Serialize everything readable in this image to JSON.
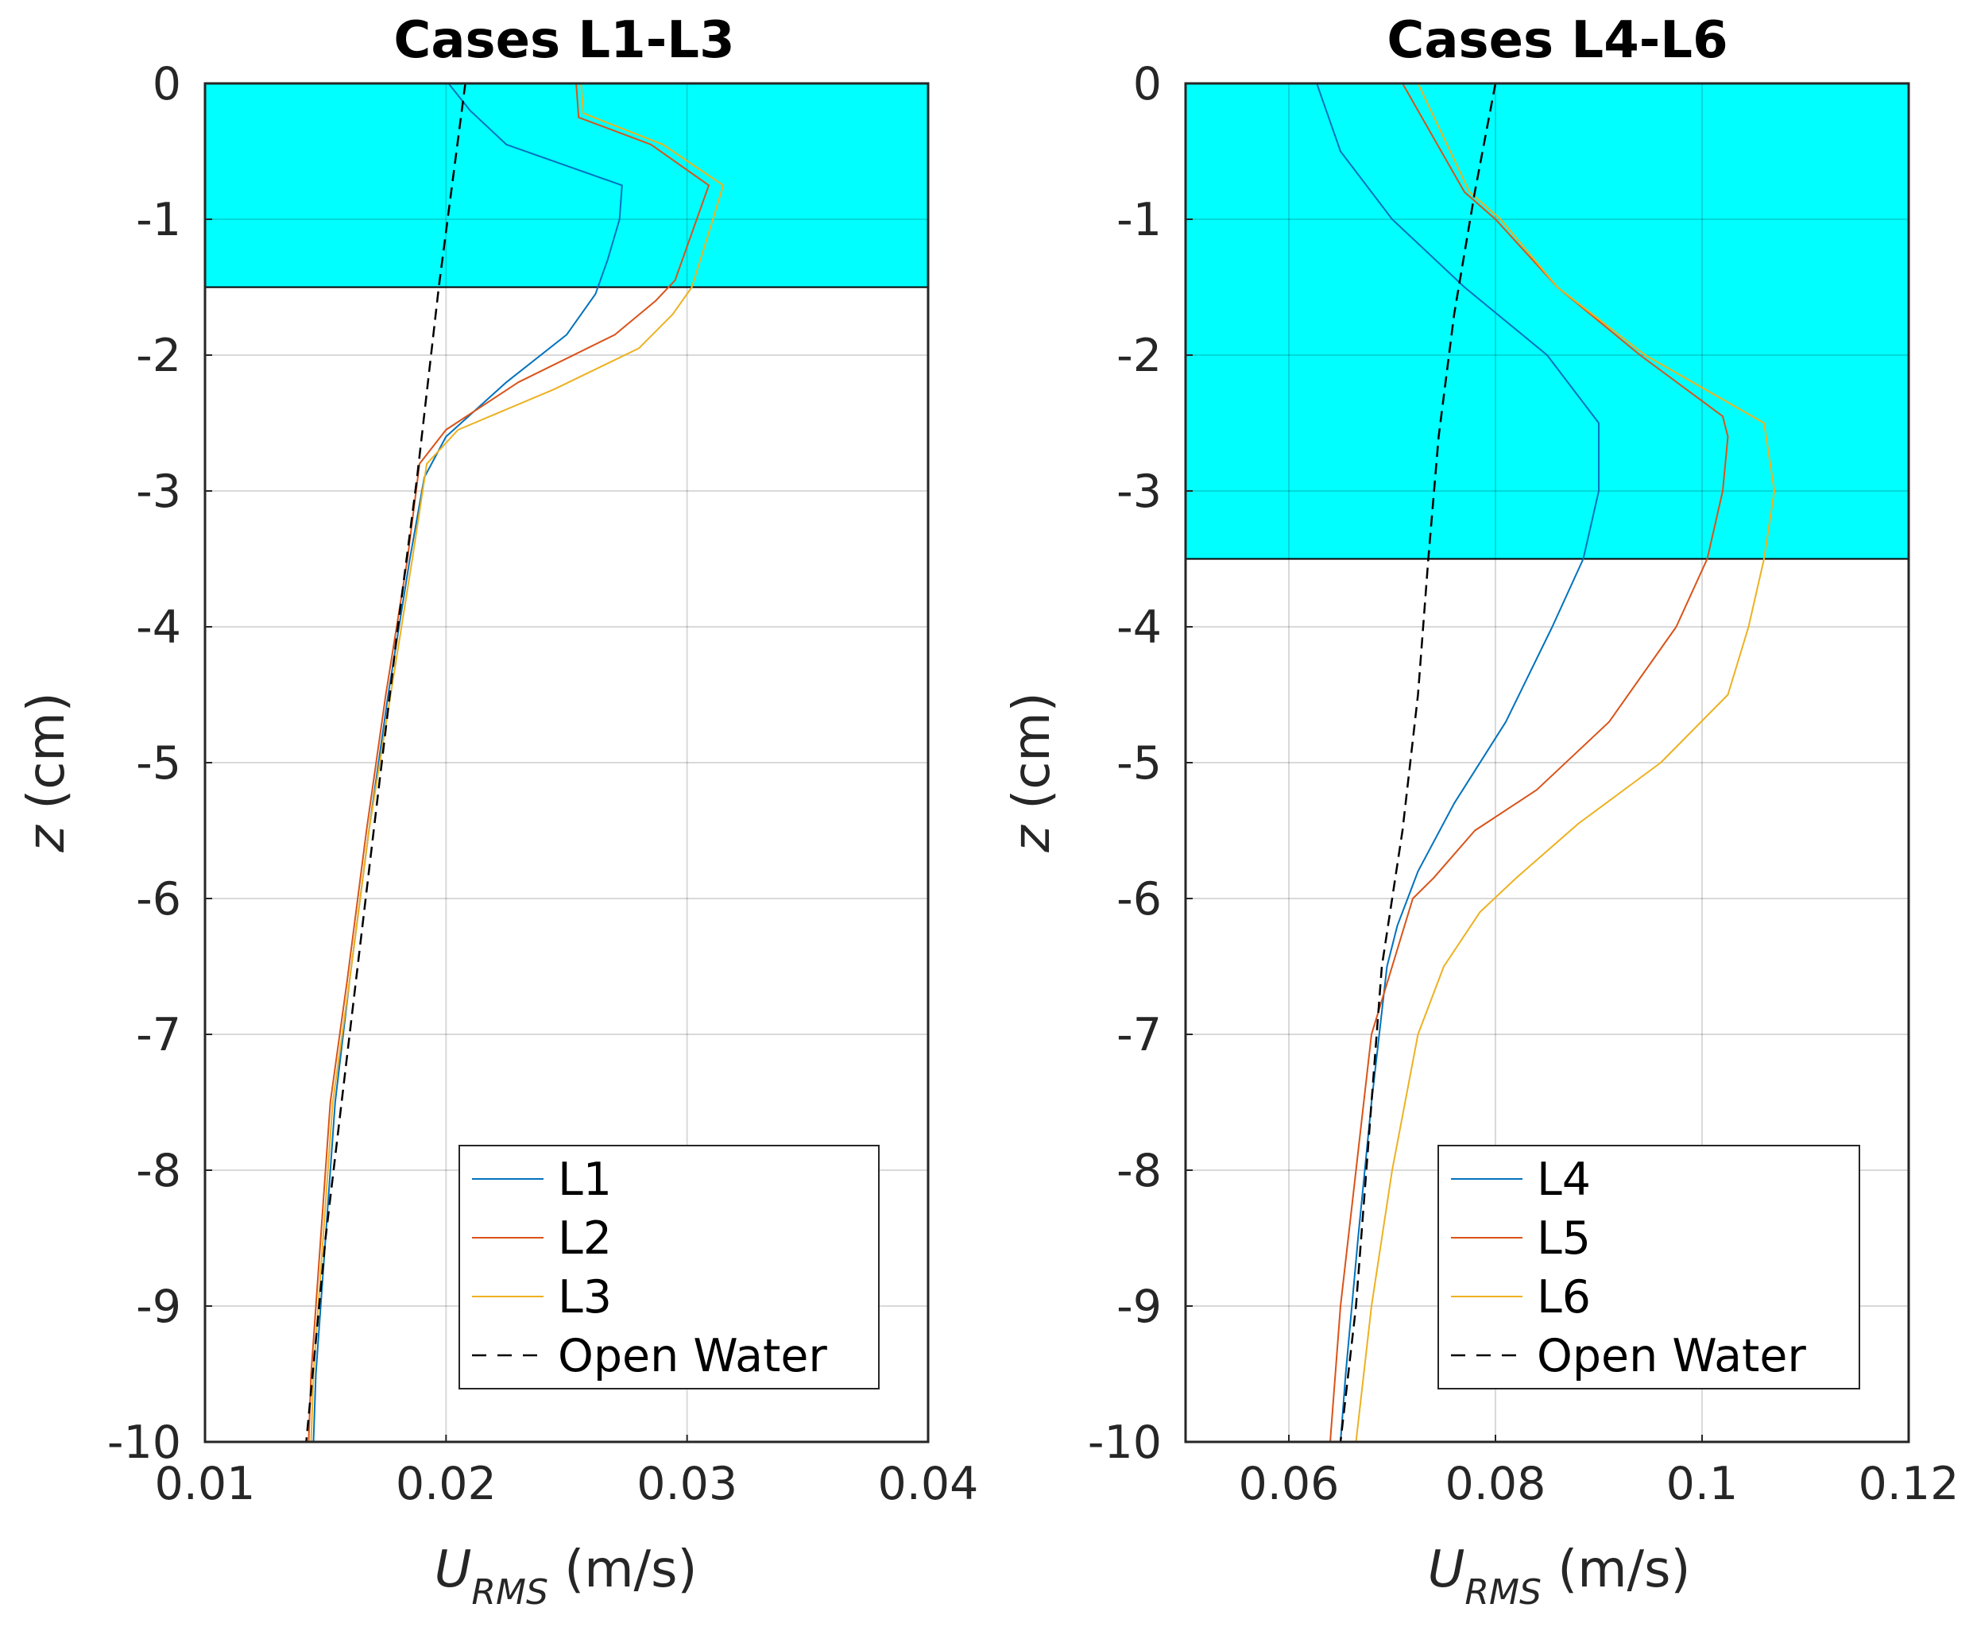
{
  "chart_data": [
    {
      "type": "line",
      "title": "Cases L1-L3",
      "xlabel_main": "U",
      "xlabel_sub": "RMS",
      "xlabel_unit": " (m/s)",
      "ylabel_main": "z",
      "ylabel_unit": " (cm)",
      "xlim": [
        0.01,
        0.04
      ],
      "ylim": [
        -10,
        0
      ],
      "xticks": [
        0.01,
        0.02,
        0.03,
        0.04
      ],
      "xtick_labels": [
        "0.01",
        "0.02",
        "0.03",
        "0.04"
      ],
      "yticks": [
        0,
        -1,
        -2,
        -3,
        -4,
        -5,
        -6,
        -7,
        -8,
        -9,
        -10
      ],
      "ytick_labels": [
        "0",
        "-1",
        "-2",
        "-3",
        "-4",
        "-5",
        "-6",
        "-7",
        "-8",
        "-9",
        "-10"
      ],
      "grid": true,
      "shaded_region": {
        "z_top": 0,
        "z_bottom": -1.5,
        "color": "#00ffff"
      },
      "legend_position": "bottom-right",
      "series": [
        {
          "name": "L1",
          "color": "#0072bd",
          "dash": "solid",
          "points": [
            [
              0.0201,
              0
            ],
            [
              0.021,
              -0.2
            ],
            [
              0.0225,
              -0.45
            ],
            [
              0.0273,
              -0.75
            ],
            [
              0.0272,
              -1.0
            ],
            [
              0.0267,
              -1.3
            ],
            [
              0.0262,
              -1.55
            ],
            [
              0.025,
              -1.85
            ],
            [
              0.0225,
              -2.2
            ],
            [
              0.02,
              -2.6
            ],
            [
              0.0191,
              -2.9
            ],
            [
              0.0185,
              -3.5
            ],
            [
              0.0176,
              -4.5
            ],
            [
              0.0168,
              -5.5
            ],
            [
              0.016,
              -6.6
            ],
            [
              0.0154,
              -7.5
            ],
            [
              0.015,
              -8.5
            ],
            [
              0.0146,
              -9.5
            ],
            [
              0.0145,
              -10
            ]
          ]
        },
        {
          "name": "L2",
          "color": "#d95319",
          "dash": "solid",
          "points": [
            [
              0.0254,
              0
            ],
            [
              0.0255,
              -0.25
            ],
            [
              0.0285,
              -0.45
            ],
            [
              0.0309,
              -0.75
            ],
            [
              0.03,
              -1.2
            ],
            [
              0.0295,
              -1.45
            ],
            [
              0.0287,
              -1.6
            ],
            [
              0.027,
              -1.85
            ],
            [
              0.023,
              -2.2
            ],
            [
              0.02,
              -2.55
            ],
            [
              0.0189,
              -2.8
            ],
            [
              0.0184,
              -3.5
            ],
            [
              0.0175,
              -4.5
            ],
            [
              0.0167,
              -5.5
            ],
            [
              0.0159,
              -6.6
            ],
            [
              0.0152,
              -7.5
            ],
            [
              0.0148,
              -8.5
            ],
            [
              0.0144,
              -9.5
            ],
            [
              0.0143,
              -10
            ]
          ]
        },
        {
          "name": "L3",
          "color": "#edb120",
          "dash": "solid",
          "points": [
            [
              0.0256,
              0
            ],
            [
              0.0257,
              -0.22
            ],
            [
              0.029,
              -0.45
            ],
            [
              0.0315,
              -0.75
            ],
            [
              0.0309,
              -1.1
            ],
            [
              0.0302,
              -1.5
            ],
            [
              0.0294,
              -1.7
            ],
            [
              0.028,
              -1.95
            ],
            [
              0.0245,
              -2.25
            ],
            [
              0.0205,
              -2.55
            ],
            [
              0.0192,
              -2.8
            ],
            [
              0.0186,
              -3.5
            ],
            [
              0.0177,
              -4.5
            ],
            [
              0.0168,
              -5.5
            ],
            [
              0.016,
              -6.6
            ],
            [
              0.0153,
              -7.5
            ],
            [
              0.0149,
              -8.5
            ],
            [
              0.0145,
              -9.5
            ],
            [
              0.0144,
              -10
            ]
          ]
        },
        {
          "name": "Open Water",
          "color": "#000000",
          "dash": "dashed",
          "points": [
            [
              0.0208,
              0
            ],
            [
              0.0197,
              -1.5
            ],
            [
              0.0188,
              -2.9
            ],
            [
              0.018,
              -4.0
            ],
            [
              0.017,
              -5.5
            ],
            [
              0.016,
              -7.0
            ],
            [
              0.015,
              -8.5
            ],
            [
              0.0142,
              -10
            ]
          ]
        }
      ]
    },
    {
      "type": "line",
      "title": "Cases L4-L6",
      "xlabel_main": "U",
      "xlabel_sub": "RMS",
      "xlabel_unit": " (m/s)",
      "ylabel_main": "z",
      "ylabel_unit": " (cm)",
      "xlim": [
        0.05,
        0.12
      ],
      "ylim": [
        -10,
        0
      ],
      "xticks": [
        0.06,
        0.08,
        0.1,
        0.12
      ],
      "xtick_labels": [
        "0.06",
        "0.08",
        "0.1",
        "0.12"
      ],
      "yticks": [
        0,
        -1,
        -2,
        -3,
        -4,
        -5,
        -6,
        -7,
        -8,
        -9,
        -10
      ],
      "ytick_labels": [
        "0",
        "-1",
        "-2",
        "-3",
        "-4",
        "-5",
        "-6",
        "-7",
        "-8",
        "-9",
        "-10"
      ],
      "grid": true,
      "shaded_region": {
        "z_top": 0,
        "z_bottom": -3.5,
        "color": "#00ffff"
      },
      "legend_position": "bottom-right",
      "series": [
        {
          "name": "L4",
          "color": "#0072bd",
          "dash": "solid",
          "points": [
            [
              0.0627,
              0
            ],
            [
              0.065,
              -0.5
            ],
            [
              0.07,
              -1.0
            ],
            [
              0.077,
              -1.5
            ],
            [
              0.085,
              -2.0
            ],
            [
              0.09,
              -2.5
            ],
            [
              0.09,
              -3.0
            ],
            [
              0.0885,
              -3.5
            ],
            [
              0.0855,
              -4.0
            ],
            [
              0.081,
              -4.7
            ],
            [
              0.076,
              -5.3
            ],
            [
              0.0725,
              -5.8
            ],
            [
              0.0705,
              -6.2
            ],
            [
              0.0695,
              -6.5
            ],
            [
              0.068,
              -7.5
            ],
            [
              0.0667,
              -8.5
            ],
            [
              0.0655,
              -9.5
            ],
            [
              0.065,
              -10
            ]
          ]
        },
        {
          "name": "L5",
          "color": "#d95319",
          "dash": "solid",
          "points": [
            [
              0.071,
              0
            ],
            [
              0.074,
              -0.4
            ],
            [
              0.077,
              -0.8
            ],
            [
              0.08,
              -1.0
            ],
            [
              0.086,
              -1.5
            ],
            [
              0.094,
              -2.0
            ],
            [
              0.102,
              -2.45
            ],
            [
              0.1025,
              -2.6
            ],
            [
              0.102,
              -3.0
            ],
            [
              0.1005,
              -3.5
            ],
            [
              0.0975,
              -4.0
            ],
            [
              0.091,
              -4.7
            ],
            [
              0.084,
              -5.2
            ],
            [
              0.078,
              -5.5
            ],
            [
              0.074,
              -5.85
            ],
            [
              0.072,
              -6.0
            ],
            [
              0.07,
              -6.5
            ],
            [
              0.068,
              -7.0
            ],
            [
              0.0665,
              -8.0
            ],
            [
              0.065,
              -9.0
            ],
            [
              0.064,
              -10
            ]
          ]
        },
        {
          "name": "L6",
          "color": "#edb120",
          "dash": "solid",
          "points": [
            [
              0.0725,
              0
            ],
            [
              0.075,
              -0.4
            ],
            [
              0.0775,
              -0.8
            ],
            [
              0.0805,
              -1.0
            ],
            [
              0.086,
              -1.5
            ],
            [
              0.0945,
              -2.0
            ],
            [
              0.106,
              -2.5
            ],
            [
              0.107,
              -3.0
            ],
            [
              0.106,
              -3.5
            ],
            [
              0.1045,
              -4.0
            ],
            [
              0.1025,
              -4.5
            ],
            [
              0.096,
              -5.0
            ],
            [
              0.088,
              -5.45
            ],
            [
              0.082,
              -5.85
            ],
            [
              0.0785,
              -6.1
            ],
            [
              0.075,
              -6.5
            ],
            [
              0.0725,
              -7.0
            ],
            [
              0.07,
              -8.0
            ],
            [
              0.068,
              -9.0
            ],
            [
              0.0665,
              -10
            ]
          ]
        },
        {
          "name": "Open Water",
          "color": "#000000",
          "dash": "dashed",
          "points": [
            [
              0.08,
              0
            ],
            [
              0.078,
              -0.8
            ],
            [
              0.076,
              -1.7
            ],
            [
              0.0745,
              -2.6
            ],
            [
              0.0735,
              -3.5
            ],
            [
              0.0725,
              -4.5
            ],
            [
              0.071,
              -5.5
            ],
            [
              0.069,
              -6.5
            ],
            [
              0.068,
              -7.5
            ],
            [
              0.0665,
              -9.0
            ],
            [
              0.065,
              -10
            ]
          ]
        }
      ]
    }
  ]
}
